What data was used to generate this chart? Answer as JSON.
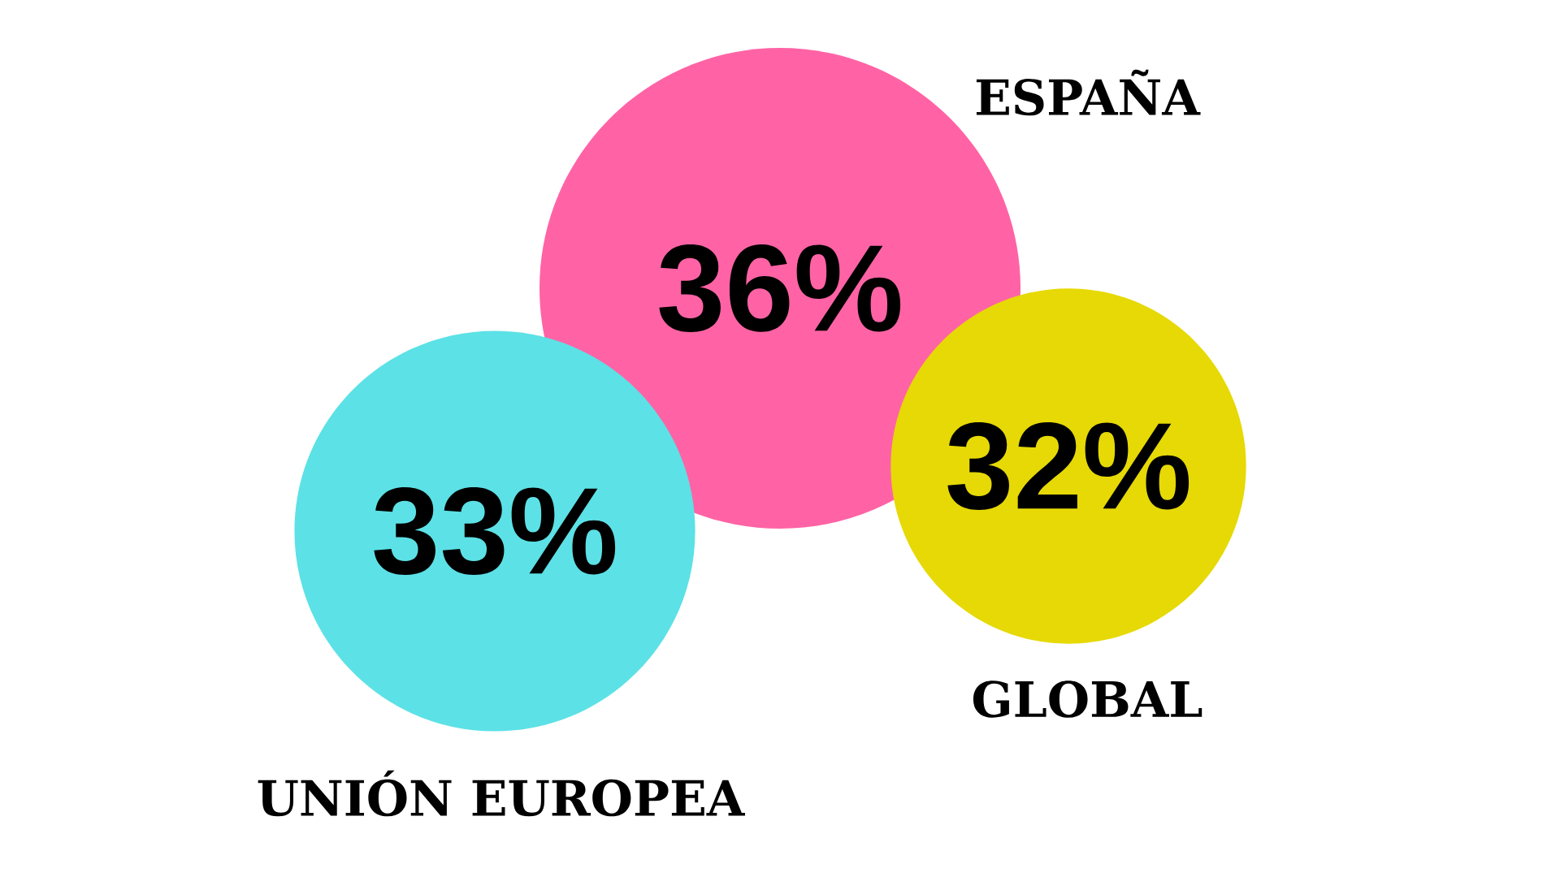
{
  "chart_data": {
    "type": "other",
    "categories": [
      "ESPAÑA",
      "UNIÓN EUROPEA",
      "GLOBAL"
    ],
    "values": [
      36,
      33,
      32
    ],
    "value_labels": [
      "36%",
      "33%",
      "32%"
    ],
    "colors": [
      "#ff63a5",
      "#5ce1e6",
      "#e6d905"
    ]
  }
}
